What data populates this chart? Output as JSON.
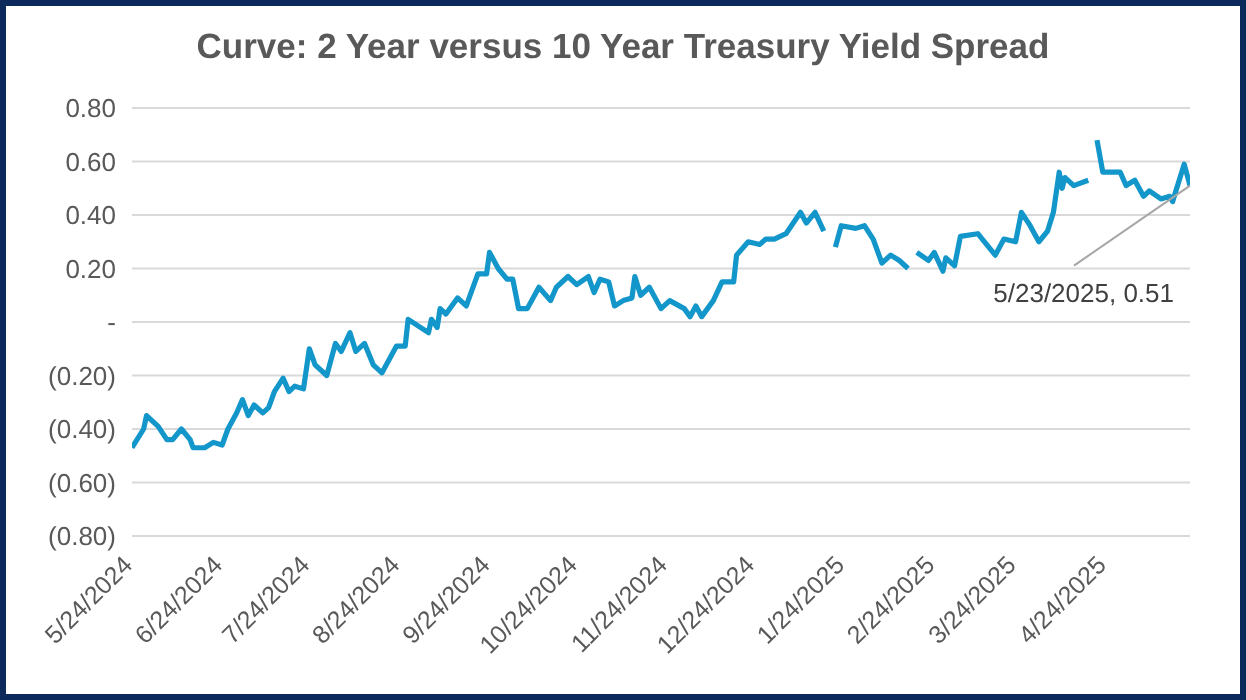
{
  "chart_data": {
    "type": "line",
    "title": "Curve: 2 Year versus 10 Year Treasury Yield Spread",
    "x": [
      "2024-05-24",
      "2024-05-28",
      "2024-05-29",
      "2024-06-02",
      "2024-06-05",
      "2024-06-07",
      "2024-06-10",
      "2024-06-13",
      "2024-06-14",
      "2024-06-18",
      "2024-06-21",
      "2024-06-24",
      "2024-06-26",
      "2024-06-29",
      "2024-07-01",
      "2024-07-03",
      "2024-07-05",
      "2024-07-08",
      "2024-07-10",
      "2024-07-12",
      "2024-07-15",
      "2024-07-17",
      "2024-07-19",
      "2024-07-22",
      "2024-07-24",
      "2024-07-26",
      "2024-07-30",
      "2024-08-02",
      "2024-08-04",
      "2024-08-07",
      "2024-08-09",
      "2024-08-12",
      "2024-08-15",
      "2024-08-18",
      "2024-08-21",
      "2024-08-23",
      "2024-08-26",
      "2024-08-27",
      "2024-09-03",
      "2024-09-04",
      "2024-09-06",
      "2024-09-07",
      "2024-09-09",
      "2024-09-13",
      "2024-09-16",
      "2024-09-20",
      "2024-09-23",
      "2024-09-24",
      "2024-09-27",
      "2024-09-30",
      "2024-10-02",
      "2024-10-04",
      "2024-10-07",
      "2024-10-11",
      "2024-10-15",
      "2024-10-17",
      "2024-10-21",
      "2024-10-24",
      "2024-10-28",
      "2024-10-30",
      "2024-11-01",
      "2024-11-04",
      "2024-11-06",
      "2024-11-09",
      "2024-11-12",
      "2024-11-13",
      "2024-11-15",
      "2024-11-18",
      "2024-11-22",
      "2024-11-25",
      "2024-11-30",
      "2024-12-02",
      "2024-12-04",
      "2024-12-06",
      "2024-12-10",
      "2024-12-13",
      "2024-12-17",
      "2024-12-18",
      "2024-12-22",
      "2024-12-26",
      "2024-12-28",
      "2024-12-31",
      "2025-01-04",
      "2025-01-09",
      "2025-01-11",
      "2025-01-14",
      "2025-01-17",
      "2025-01-19",
      "2025-01-21",
      "2025-01-23",
      "2025-01-28",
      "2025-01-31",
      "2025-02-03",
      "2025-02-06",
      "2025-02-09",
      "2025-02-12",
      "2025-02-15",
      "2025-02-16",
      "2025-02-18",
      "2025-02-22",
      "2025-02-24",
      "2025-02-27",
      "2025-02-28",
      "2025-03-03",
      "2025-03-05",
      "2025-03-11",
      "2025-03-17",
      "2025-03-20",
      "2025-03-24",
      "2025-03-26",
      "2025-03-29",
      "2025-04-01",
      "2025-04-04",
      "2025-04-06",
      "2025-04-08",
      "2025-04-09",
      "2025-04-10",
      "2025-04-13",
      "2025-04-18",
      "2025-04-20",
      "2025-04-21",
      "2025-04-23",
      "2025-04-29",
      "2025-05-01",
      "2025-05-04",
      "2025-05-07",
      "2025-05-09",
      "2025-05-13",
      "2025-05-16",
      "2025-05-17",
      "2025-05-21",
      "2025-05-23"
    ],
    "series": [
      {
        "color": "#1396c9",
        "values": [
          -0.47,
          -0.4,
          -0.35,
          -0.39,
          -0.44,
          -0.44,
          -0.4,
          -0.44,
          -0.47,
          -0.47,
          -0.45,
          -0.46,
          -0.4,
          -0.34,
          -0.29,
          -0.35,
          -0.31,
          -0.34,
          -0.32,
          -0.26,
          -0.21,
          -0.26,
          -0.24,
          -0.25,
          -0.1,
          -0.16,
          -0.2,
          -0.08,
          -0.11,
          -0.04,
          -0.11,
          -0.08,
          -0.16,
          -0.19,
          -0.13,
          -0.09,
          -0.09,
          0.01,
          -0.04,
          0.01,
          -0.02,
          0.05,
          0.03,
          0.09,
          0.06,
          0.18,
          0.18,
          0.26,
          0.2,
          0.16,
          0.16,
          0.05,
          0.05,
          0.13,
          0.08,
          0.13,
          0.17,
          0.14,
          0.17,
          0.11,
          0.16,
          0.15,
          0.06,
          0.08,
          0.09,
          0.17,
          0.1,
          0.13,
          0.05,
          0.08,
          0.05,
          0.02,
          0.06,
          0.02,
          0.08,
          0.15,
          0.15,
          0.25,
          0.3,
          0.29,
          0.31,
          0.31,
          0.33,
          0.41,
          0.37,
          0.41,
          0.34,
          null,
          0.28,
          0.36,
          0.35,
          0.36,
          0.31,
          0.22,
          0.25,
          0.23,
          0.2,
          null,
          0.26,
          0.23,
          0.26,
          0.19,
          0.24,
          0.21,
          0.32,
          0.33,
          0.25,
          0.31,
          0.3,
          0.41,
          0.36,
          0.3,
          0.34,
          0.41,
          0.56,
          0.5,
          0.54,
          0.51,
          0.53,
          null,
          0.68,
          0.56,
          0.56,
          0.51,
          0.53,
          0.47,
          0.49,
          0.46,
          0.47,
          0.45,
          0.59,
          0.51
        ]
      }
    ],
    "xlim": [
      "2024-05-24",
      "2025-05-23"
    ],
    "xticks": [
      {
        "value": "2024-05-24",
        "label": "5/24/2024"
      },
      {
        "value": "2024-06-24",
        "label": "6/24/2024"
      },
      {
        "value": "2024-07-24",
        "label": "7/24/2024"
      },
      {
        "value": "2024-08-24",
        "label": "8/24/2024"
      },
      {
        "value": "2024-09-24",
        "label": "9/24/2024"
      },
      {
        "value": "2024-10-24",
        "label": "10/24/2024"
      },
      {
        "value": "2024-11-24",
        "label": "11/24/2024"
      },
      {
        "value": "2024-12-24",
        "label": "12/24/2024"
      },
      {
        "value": "2025-01-24",
        "label": "1/24/2025"
      },
      {
        "value": "2025-02-24",
        "label": "2/24/2025"
      },
      {
        "value": "2025-03-24",
        "label": "3/24/2025"
      },
      {
        "value": "2025-04-24",
        "label": "4/24/2025"
      }
    ],
    "ylim": [
      -0.8,
      0.8
    ],
    "yticks": [
      {
        "value": -0.8,
        "label": "(0.80)"
      },
      {
        "value": -0.6,
        "label": "(0.60)"
      },
      {
        "value": -0.4,
        "label": "(0.40)"
      },
      {
        "value": -0.2,
        "label": "(0.20)"
      },
      {
        "value": 0,
        "label": "-"
      },
      {
        "value": 0.2,
        "label": "0.20"
      },
      {
        "value": 0.4,
        "label": "0.40"
      },
      {
        "value": 0.6,
        "label": "0.60"
      },
      {
        "value": 0.8,
        "label": "0.80"
      }
    ],
    "grid": "y",
    "annotations": [
      {
        "text": "5/23/2025, 0.51",
        "x": "2025-05-23",
        "y": 0.51
      }
    ]
  }
}
